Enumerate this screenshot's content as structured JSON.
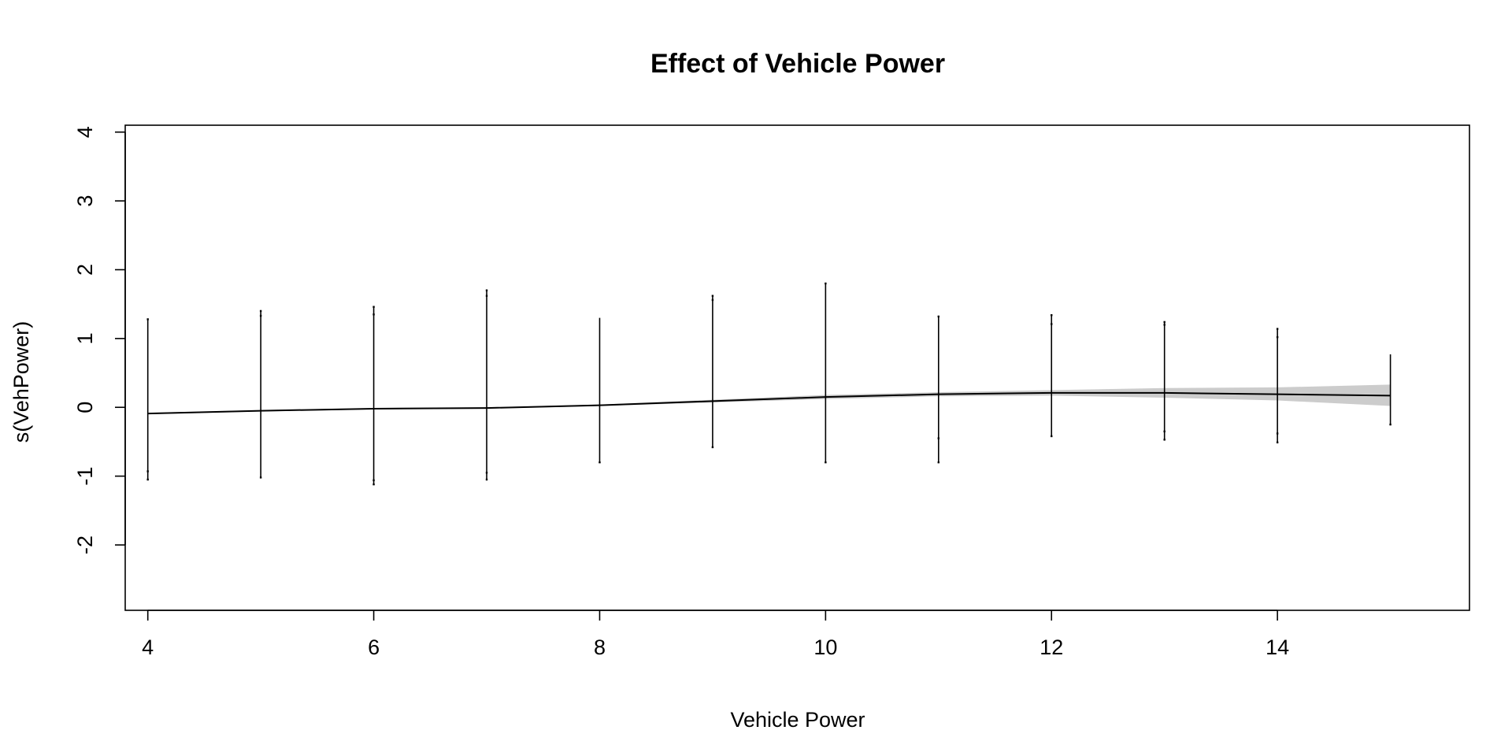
{
  "chart_data": {
    "type": "line",
    "title": "Effect of Vehicle Power",
    "xlabel": "Vehicle Power",
    "ylabel": "s(VehPower)",
    "xlim": [
      3.8,
      15.7
    ],
    "ylim": [
      -2.95,
      4.1
    ],
    "xticks": [
      4,
      6,
      8,
      10,
      12,
      14
    ],
    "yticks": [
      -2,
      -1,
      0,
      1,
      2,
      3,
      4
    ],
    "grid": false,
    "legend": "none",
    "colors": {
      "line": "#000000",
      "band": "#cccccc",
      "rug": "#000000"
    },
    "series": [
      {
        "x": [
          4,
          5,
          6,
          7,
          8,
          9,
          10,
          11,
          12,
          13,
          14,
          15
        ],
        "values": [
          -0.09,
          -0.05,
          -0.02,
          -0.01,
          0.03,
          0.09,
          0.15,
          0.19,
          0.21,
          0.21,
          0.19,
          0.17
        ],
        "lower": [
          -0.1,
          -0.06,
          -0.03,
          -0.02,
          0.02,
          0.07,
          0.12,
          0.16,
          0.17,
          0.14,
          0.1,
          0.02
        ],
        "upper": [
          -0.08,
          -0.04,
          -0.01,
          0.0,
          0.04,
          0.11,
          0.18,
          0.22,
          0.25,
          0.28,
          0.29,
          0.33
        ]
      }
    ],
    "partial_residuals": [
      {
        "x": 4,
        "min": -1.05,
        "max": 1.28,
        "outliers": [
          1.28,
          -0.93,
          -1.05
        ]
      },
      {
        "x": 5,
        "min": -1.02,
        "max": 1.4,
        "outliers": [
          1.4,
          1.33,
          -1.02
        ]
      },
      {
        "x": 6,
        "min": -1.12,
        "max": 1.46,
        "outliers": [
          1.46,
          1.35,
          -1.06,
          -1.12
        ]
      },
      {
        "x": 7,
        "min": -1.05,
        "max": 1.7,
        "outliers": [
          1.7,
          1.62,
          -0.95,
          -1.05
        ]
      },
      {
        "x": 8,
        "min": -0.8,
        "max": 1.3,
        "outliers": [
          -0.8
        ]
      },
      {
        "x": 9,
        "min": -0.58,
        "max": 1.62,
        "outliers": [
          1.62,
          1.56,
          -0.58
        ]
      },
      {
        "x": 10,
        "min": -0.8,
        "max": 1.8,
        "outliers": [
          1.8,
          -0.8
        ]
      },
      {
        "x": 11,
        "min": -0.8,
        "max": 1.32,
        "outliers": [
          1.32,
          -0.45,
          -0.8
        ]
      },
      {
        "x": 12,
        "min": -0.42,
        "max": 1.34,
        "outliers": [
          1.34,
          1.21,
          -0.42
        ]
      },
      {
        "x": 13,
        "min": -0.47,
        "max": 1.24,
        "outliers": [
          1.24,
          1.2,
          -0.35,
          -0.47
        ]
      },
      {
        "x": 14,
        "min": -0.51,
        "max": 1.14,
        "outliers": [
          1.14,
          1.02,
          -0.38,
          -0.51
        ]
      },
      {
        "x": 15,
        "min": -0.25,
        "max": 0.77,
        "outliers": [
          -0.25
        ]
      }
    ]
  }
}
